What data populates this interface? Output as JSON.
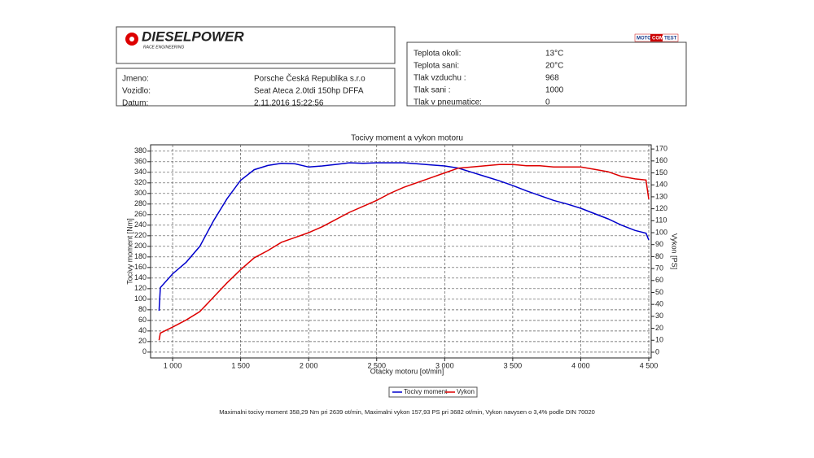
{
  "header": {
    "brand": "DIESELPOWER",
    "brand_sub": "RACE ENGINEERING",
    "badge": [
      "MOTO",
      "COM",
      "TEST"
    ],
    "fields": [
      {
        "label": "Jmeno:",
        "value": "Porsche Česká Republika s.r.o"
      },
      {
        "label": "Vozidlo:",
        "value": "Seat Ateca 2.0tdi 150hp DFFA"
      },
      {
        "label": "Datum:",
        "value": "2.11.2016 15:22:56"
      }
    ],
    "conditions": [
      {
        "label": "Teplota okoli:",
        "value": "13°C"
      },
      {
        "label": "Teplota sani:",
        "value": "20°C"
      },
      {
        "label": "Tlak vzduchu :",
        "value": "968"
      },
      {
        "label": "Tlak sani :",
        "value": "1000"
      },
      {
        "label": "Tlak v pneumatice:",
        "value": "0"
      }
    ]
  },
  "chart_data": {
    "type": "line",
    "title": "Tocivy moment a vykon motoru",
    "x_label": "Otacky motoru [ot/min]",
    "y_label": "Tocivy moment [Nm]",
    "y2_label": "Vykon [PS]",
    "x": [
      900,
      910,
      1000,
      1100,
      1200,
      1300,
      1400,
      1500,
      1600,
      1700,
      1800,
      1900,
      2000,
      2100,
      2200,
      2300,
      2400,
      2500,
      2600,
      2700,
      2800,
      2900,
      3000,
      3100,
      3200,
      3300,
      3400,
      3500,
      3600,
      3700,
      3800,
      3900,
      4000,
      4100,
      4200,
      4300,
      4400,
      4480,
      4500
    ],
    "series": [
      {
        "name": "Tocivy moment",
        "color": "#0000cc",
        "values": [
          78,
          122,
          148,
          170,
          200,
          248,
          290,
          325,
          345,
          353,
          357,
          356,
          350,
          352,
          355,
          358,
          357,
          358,
          358,
          358,
          356,
          354,
          352,
          348,
          340,
          332,
          324,
          315,
          305,
          296,
          287,
          280,
          272,
          262,
          252,
          240,
          230,
          225,
          212
        ]
      },
      {
        "name": "Vykon",
        "color": "#dd0000",
        "axis": "y2",
        "values": [
          10,
          16,
          21,
          27,
          34,
          46,
          58,
          69,
          79,
          85,
          92,
          96,
          100,
          105,
          111,
          117,
          122,
          127,
          133,
          138,
          142,
          146,
          150,
          154,
          155,
          156,
          157,
          157,
          156,
          156,
          155,
          155,
          155,
          153,
          151,
          147,
          145,
          144,
          128
        ]
      }
    ],
    "xlim": [
      838,
      4518
    ],
    "ylim": [
      -11,
      392
    ],
    "y2lim": [
      -4.8,
      173.5
    ],
    "xticks": [
      {
        "value": 1000,
        "label": "1 000"
      },
      {
        "value": 1500,
        "label": "1 500"
      },
      {
        "value": 2000,
        "label": "2 000"
      },
      {
        "value": 2500,
        "label": "2 500"
      },
      {
        "value": 3000,
        "label": "3 000"
      },
      {
        "value": 3500,
        "label": "3 500"
      },
      {
        "value": 4000,
        "label": "4 000"
      },
      {
        "value": 4500,
        "label": "4 500"
      }
    ],
    "yticks": [
      0,
      20,
      40,
      60,
      80,
      100,
      120,
      140,
      160,
      180,
      200,
      220,
      240,
      260,
      280,
      300,
      320,
      340,
      360,
      380
    ],
    "y2ticks": [
      0,
      10,
      20,
      30,
      40,
      50,
      60,
      70,
      80,
      90,
      100,
      110,
      120,
      130,
      140,
      150,
      160,
      170
    ],
    "grid": true,
    "footnote": "Maximalni tocivy moment 358,29 Nm pri 2639 ot/min,  Maximalni vykon 157,93 PS pri 3682 ot/min,  Vykon navysen o 3,4% podle DIN 70020"
  }
}
